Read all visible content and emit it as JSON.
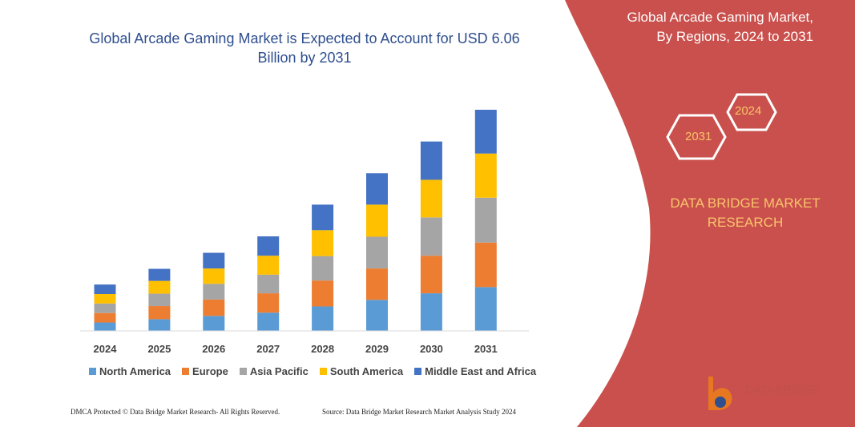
{
  "chart_data": {
    "type": "bar",
    "stacked": true,
    "title": "Global Arcade Gaming Market is Expected to Account for USD 6.06 Billion by 2031",
    "categories": [
      "2024",
      "2025",
      "2026",
      "2027",
      "2028",
      "2029",
      "2030",
      "2031"
    ],
    "series": [
      {
        "name": "North America",
        "color": "#5b9bd5",
        "values": [
          0.23,
          0.32,
          0.41,
          0.5,
          0.67,
          0.85,
          1.03,
          1.2
        ]
      },
      {
        "name": "Europe",
        "color": "#ed7d31",
        "values": [
          0.26,
          0.36,
          0.45,
          0.53,
          0.71,
          0.86,
          1.03,
          1.22
        ]
      },
      {
        "name": "Asia Pacific",
        "color": "#a5a5a5",
        "values": [
          0.26,
          0.34,
          0.43,
          0.51,
          0.67,
          0.87,
          1.05,
          1.23
        ]
      },
      {
        "name": "South America",
        "color": "#ffc000",
        "values": [
          0.26,
          0.35,
          0.42,
          0.52,
          0.71,
          0.88,
          1.03,
          1.21
        ]
      },
      {
        "name": "Middle East and Africa",
        "color": "#4472c4",
        "values": [
          0.26,
          0.33,
          0.43,
          0.53,
          0.7,
          0.86,
          1.05,
          1.2
        ]
      }
    ],
    "legend_position": "bottom",
    "grid": false
  },
  "side": {
    "title_line1": "Global Arcade Gaming Market,",
    "title_line2": "By Regions, 2024 to 2031",
    "hex1": "2024",
    "hex2": "2031",
    "brand_line1": "DATA BRIDGE MARKET",
    "brand_line2": "RESEARCH",
    "accent": "#c9504c"
  },
  "footer": {
    "left": "DMCA Protected © Data Bridge Market Research-  All Rights Reserved.",
    "right": "Source: Data Bridge Market Research  Market Analysis Study 2024"
  },
  "logo": {
    "text": "DATA BRIDGE"
  }
}
